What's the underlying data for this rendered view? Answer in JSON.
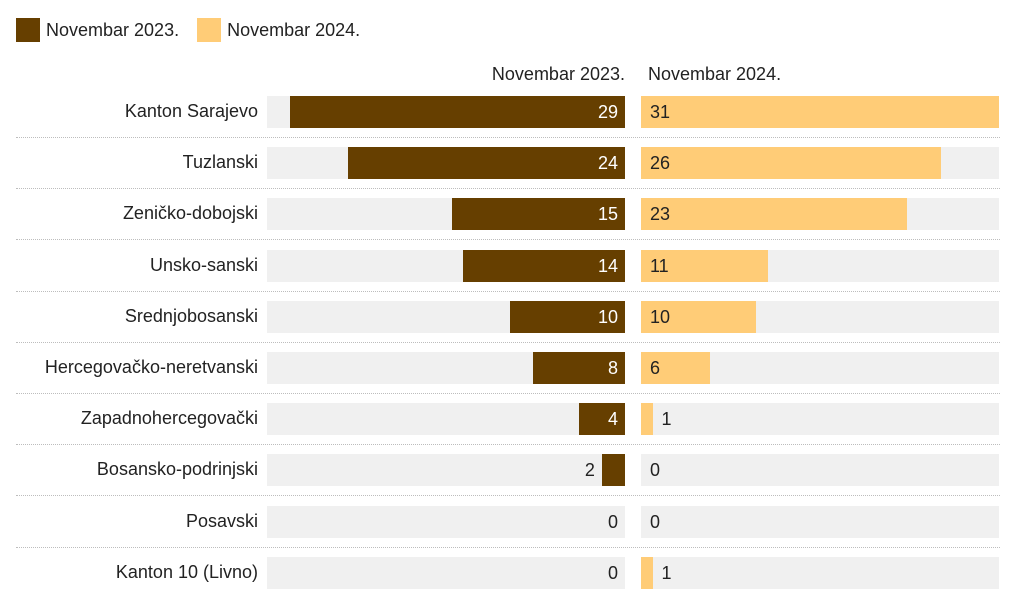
{
  "legend": [
    {
      "label": "Novembar 2023.",
      "color": "#663f00"
    },
    {
      "label": "Novembar 2024.",
      "color": "#ffcc77"
    }
  ],
  "chart_data": {
    "type": "bar",
    "orientation": "horizontal",
    "layout": "split-columns",
    "columns": [
      "Novembar 2023.",
      "Novembar 2024."
    ],
    "categories": [
      "Kanton Sarajevo",
      "Tuzlanski",
      "Zeničko-dobojski",
      "Unsko-sanski",
      "Srednjobosanski",
      "Hercegovačko-neretvanski",
      "Zapadnohercegovački",
      "Bosansko-podrinjski",
      "Posavski",
      "Kanton 10 (Livno)"
    ],
    "series": [
      {
        "name": "Novembar 2023.",
        "color": "#663f00",
        "values": [
          29,
          24,
          15,
          14,
          10,
          8,
          4,
          2,
          0,
          0
        ]
      },
      {
        "name": "Novembar 2024.",
        "color": "#ffcc77",
        "values": [
          31,
          26,
          23,
          11,
          10,
          6,
          1,
          0,
          0,
          1
        ]
      }
    ],
    "xlim": [
      0,
      31
    ]
  }
}
